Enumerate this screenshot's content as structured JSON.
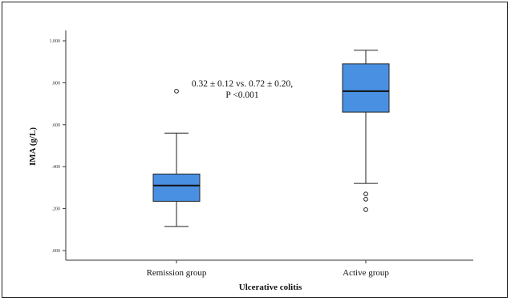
{
  "chart_data": {
    "type": "box",
    "xlabel": "Ulcerative colitis",
    "ylabel": "IMA (g/L)",
    "ylim": [
      0,
      1
    ],
    "yticks": [
      ".000",
      ".200",
      ".400",
      ".600",
      ".800",
      "1.000"
    ],
    "ytick_values": [
      0,
      0.2,
      0.4,
      0.6,
      0.8,
      1.0
    ],
    "categories": [
      "Remission group",
      "Active group"
    ],
    "boxes": [
      {
        "category": "Remission group",
        "whisker_low": 0.115,
        "q1": 0.235,
        "median": 0.31,
        "q3": 0.365,
        "whisker_high": 0.56,
        "outliers": [
          0.76
        ]
      },
      {
        "category": "Active group",
        "whisker_low": 0.32,
        "q1": 0.66,
        "median": 0.76,
        "q3": 0.89,
        "whisker_high": 0.955,
        "outliers": [
          0.27,
          0.245,
          0.195
        ]
      }
    ],
    "annotation": [
      "0.32 ± 0.12 vs. 0.72 ± 0.20,",
      "P <0.001"
    ],
    "box_color": "#4a90e2",
    "grid": false
  }
}
